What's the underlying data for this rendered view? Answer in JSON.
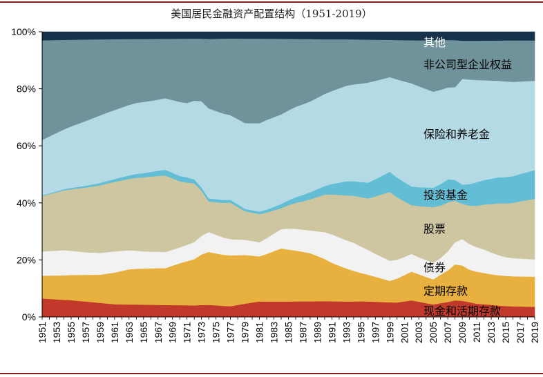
{
  "chart_data": {
    "type": "area",
    "stacked": true,
    "title": "美国居民金融资产配置结构（1951-2019）",
    "xlabel": "",
    "ylabel": "",
    "ylim": [
      0,
      100
    ],
    "y_ticks": [
      "0%",
      "20%",
      "40%",
      "60%",
      "80%",
      "100%"
    ],
    "x_start": 1951,
    "x_end": 2019,
    "x_ticks": [
      "1951",
      "1953",
      "1955",
      "1957",
      "1959",
      "1961",
      "1963",
      "1965",
      "1967",
      "1969",
      "1971",
      "1973",
      "1975",
      "1977",
      "1979",
      "1981",
      "1983",
      "1985",
      "1987",
      "1989",
      "1991",
      "1993",
      "1995",
      "1997",
      "1999",
      "2001",
      "2003",
      "2005",
      "2007",
      "2009",
      "2011",
      "2013",
      "2015",
      "2017",
      "2019"
    ],
    "series": [
      {
        "name": "现金和活期存款",
        "color": "#c0392b",
        "anchors": [
          [
            1951,
            6.5
          ],
          [
            1955,
            6
          ],
          [
            1961,
            4.5
          ],
          [
            1973,
            4
          ],
          [
            1977,
            3.8
          ],
          [
            1981,
            5.5
          ],
          [
            1986,
            5.5
          ],
          [
            1995,
            5.5
          ],
          [
            2000,
            5
          ],
          [
            2002,
            5.8
          ],
          [
            2005,
            4.5
          ],
          [
            2008,
            6
          ],
          [
            2011,
            4.5
          ],
          [
            2015,
            3.8
          ],
          [
            2019,
            3.5
          ]
        ]
      },
      {
        "name": "定期存款",
        "color": "#e8b13f",
        "anchors": [
          [
            1951,
            8
          ],
          [
            1955,
            9
          ],
          [
            1959,
            10
          ],
          [
            1963,
            12.5
          ],
          [
            1968,
            13
          ],
          [
            1973,
            17
          ],
          [
            1977,
            18
          ],
          [
            1981,
            16
          ],
          [
            1984,
            19
          ],
          [
            1988,
            17
          ],
          [
            1991,
            13.5
          ],
          [
            1995,
            10
          ],
          [
            1999,
            7.5
          ],
          [
            2002,
            10
          ],
          [
            2005,
            9
          ],
          [
            2008,
            13
          ],
          [
            2010,
            11
          ],
          [
            2013,
            10.5
          ],
          [
            2016,
            10.5
          ],
          [
            2019,
            10.5
          ]
        ]
      },
      {
        "name": "债券",
        "color": "#f2f2f2",
        "anchors": [
          [
            1951,
            8.5
          ],
          [
            1954,
            9
          ],
          [
            1957,
            8
          ],
          [
            1961,
            7.5
          ],
          [
            1965,
            6
          ],
          [
            1970,
            5.5
          ],
          [
            1974,
            6.5
          ],
          [
            1978,
            5.5
          ],
          [
            1981,
            5
          ],
          [
            1985,
            7.5
          ],
          [
            1988,
            8
          ],
          [
            1991,
            10
          ],
          [
            1994,
            10
          ],
          [
            1997,
            8
          ],
          [
            2000,
            6.5
          ],
          [
            2003,
            6
          ],
          [
            2006,
            6
          ],
          [
            2009,
            9
          ],
          [
            2012,
            8
          ],
          [
            2015,
            6.5
          ],
          [
            2019,
            6
          ]
        ]
      },
      {
        "name": "股票",
        "color": "#cdc6a0",
        "anchors": [
          [
            1951,
            19.5
          ],
          [
            1955,
            22
          ],
          [
            1959,
            24
          ],
          [
            1965,
            26
          ],
          [
            1968,
            27
          ],
          [
            1970,
            23
          ],
          [
            1972,
            20.5
          ],
          [
            1974,
            10
          ],
          [
            1977,
            13
          ],
          [
            1979,
            10
          ],
          [
            1981,
            10
          ],
          [
            1984,
            7.5
          ],
          [
            1987,
            10
          ],
          [
            1990,
            13
          ],
          [
            1993,
            16
          ],
          [
            1996,
            18
          ],
          [
            1999,
            24
          ],
          [
            2002,
            17
          ],
          [
            2005,
            20
          ],
          [
            2007,
            18
          ],
          [
            2009,
            12
          ],
          [
            2011,
            14
          ],
          [
            2014,
            18
          ],
          [
            2017,
            20
          ],
          [
            2019,
            21
          ]
        ]
      },
      {
        "name": "投资基金",
        "color": "#62bdd5",
        "anchors": [
          [
            1951,
            0.2
          ],
          [
            1955,
            0.5
          ],
          [
            1961,
            1
          ],
          [
            1965,
            1.5
          ],
          [
            1968,
            2
          ],
          [
            1971,
            1.8
          ],
          [
            1973,
            1
          ],
          [
            1976,
            1
          ],
          [
            1980,
            0.8
          ],
          [
            1982,
            1
          ],
          [
            1986,
            2
          ],
          [
            1990,
            3
          ],
          [
            1993,
            5
          ],
          [
            1996,
            5.5
          ],
          [
            1999,
            7
          ],
          [
            2002,
            6.5
          ],
          [
            2005,
            7
          ],
          [
            2007,
            8.5
          ],
          [
            2009,
            6.5
          ],
          [
            2011,
            8
          ],
          [
            2014,
            9
          ],
          [
            2017,
            9.5
          ],
          [
            2019,
            10
          ]
        ]
      },
      {
        "name": "保险和养老金",
        "color": "#b4dae6",
        "anchors": [
          [
            1951,
            19.5
          ],
          [
            1955,
            22
          ],
          [
            1959,
            24
          ],
          [
            1963,
            25
          ],
          [
            1967,
            25
          ],
          [
            1971,
            26
          ],
          [
            1973,
            29
          ],
          [
            1976,
            30
          ],
          [
            1979,
            30
          ],
          [
            1982,
            32
          ],
          [
            1986,
            32
          ],
          [
            1990,
            32
          ],
          [
            1993,
            34
          ],
          [
            1996,
            35
          ],
          [
            1999,
            33
          ],
          [
            2002,
            36
          ],
          [
            2005,
            34.5
          ],
          [
            2008,
            33.5
          ],
          [
            2009,
            36
          ],
          [
            2012,
            34
          ],
          [
            2016,
            33
          ],
          [
            2019,
            31
          ]
        ]
      },
      {
        "name": "非公司型企业权益",
        "color": "#6f929b",
        "anchors": [
          [
            1951,
            35
          ],
          [
            1954,
            32
          ],
          [
            1957,
            29
          ],
          [
            1960,
            26
          ],
          [
            1964,
            22.5
          ],
          [
            1968,
            21
          ],
          [
            1971,
            22.5
          ],
          [
            1973,
            21
          ],
          [
            1976,
            26
          ],
          [
            1979,
            29.5
          ],
          [
            1981,
            30
          ],
          [
            1984,
            27
          ],
          [
            1986,
            24
          ],
          [
            1988,
            22
          ],
          [
            1990,
            19
          ],
          [
            1993,
            16.5
          ],
          [
            1996,
            15
          ],
          [
            1999,
            13
          ],
          [
            2002,
            15
          ],
          [
            2005,
            18.5
          ],
          [
            2008,
            17
          ],
          [
            2009,
            13
          ],
          [
            2012,
            13.5
          ],
          [
            2016,
            14.5
          ],
          [
            2019,
            14
          ]
        ]
      },
      {
        "name": "其他",
        "color": "#17324a",
        "anchors": [
          [
            1951,
            3
          ],
          [
            1958,
            2.7
          ],
          [
            1970,
            2.4
          ],
          [
            1973,
            2.3
          ],
          [
            1980,
            2.4
          ],
          [
            1990,
            2.6
          ],
          [
            1999,
            2.8
          ],
          [
            2003,
            3
          ],
          [
            2010,
            3
          ],
          [
            2019,
            3
          ]
        ]
      }
    ],
    "labels": {
      "其他": "其他",
      "非公司型企业权益": "非公司型企业权益",
      "保险和养老金": "保险和养老金",
      "投资基金": "投资基金",
      "股票": "股票",
      "债券": "债券",
      "定期存款": "定期存款",
      "现金和活期存款": "现金和活期存款"
    },
    "legend": "inline-right"
  }
}
